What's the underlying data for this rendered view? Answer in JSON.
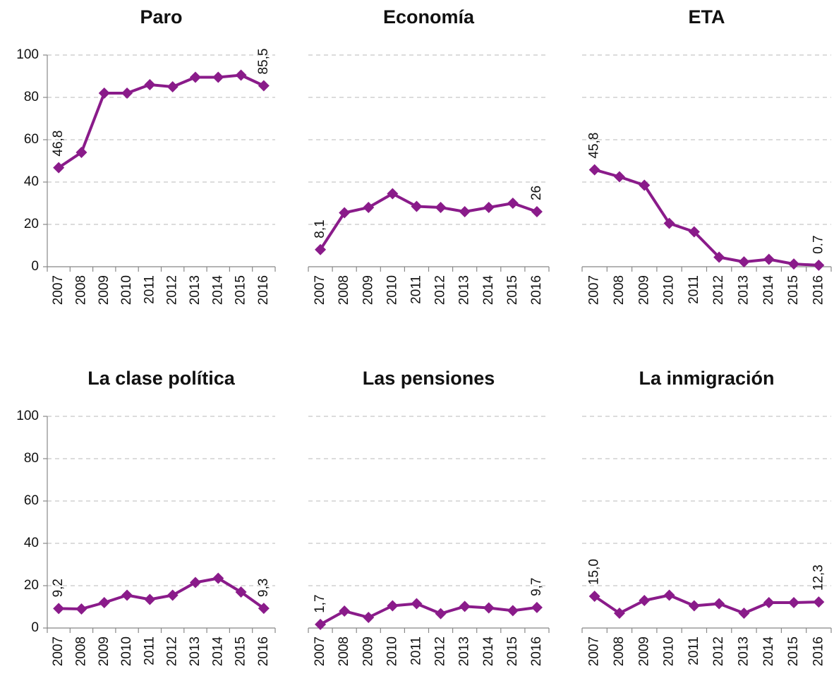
{
  "chart_data": [
    {
      "type": "line",
      "title": "Paro",
      "categories": [
        "2007",
        "2008",
        "2009",
        "2010",
        "2011",
        "2012",
        "2013",
        "2014",
        "2015",
        "2016"
      ],
      "values": [
        46.8,
        54,
        82,
        82,
        86,
        85,
        89.5,
        89.5,
        90.5,
        85.5
      ],
      "value_labels": [
        "46,8",
        null,
        null,
        null,
        null,
        null,
        null,
        null,
        null,
        "85,5"
      ],
      "color": "#8a1b8a",
      "ylim": [
        0,
        100
      ],
      "yticks": [
        0,
        20,
        40,
        60,
        80,
        100
      ],
      "grid": true
    },
    {
      "type": "line",
      "title": "Economía",
      "categories": [
        "2007",
        "2008",
        "2009",
        "2010",
        "2011",
        "2012",
        "2013",
        "2014",
        "2015",
        "2016"
      ],
      "values": [
        8.1,
        25.5,
        28,
        34.5,
        28.5,
        28,
        26,
        28,
        30,
        26
      ],
      "value_labels": [
        "8,1",
        null,
        null,
        null,
        null,
        null,
        null,
        null,
        null,
        "26"
      ],
      "color": "#8a1b8a",
      "ylim": [
        0,
        100
      ],
      "yticks": [
        0,
        20,
        40,
        60,
        80,
        100
      ],
      "grid": true
    },
    {
      "type": "line",
      "title": "ETA",
      "categories": [
        "2007",
        "2008",
        "2009",
        "2010",
        "2011",
        "2012",
        "2013",
        "2014",
        "2015",
        "2016"
      ],
      "values": [
        45.8,
        42.5,
        38.5,
        20.5,
        16.5,
        4.5,
        2.3,
        3.5,
        1.3,
        0.7
      ],
      "value_labels": [
        "45,8",
        null,
        null,
        null,
        null,
        null,
        null,
        null,
        null,
        "0.7"
      ],
      "color": "#8a1b8a",
      "ylim": [
        0,
        100
      ],
      "yticks": [
        0,
        20,
        40,
        60,
        80,
        100
      ],
      "grid": true
    },
    {
      "type": "line",
      "title": "La clase política",
      "categories": [
        "2007",
        "2008",
        "2009",
        "2010",
        "2011",
        "2012",
        "2013",
        "2014",
        "2015",
        "2016"
      ],
      "values": [
        9.2,
        9,
        12,
        15.5,
        13.5,
        15.5,
        21.5,
        23.5,
        17,
        9.3
      ],
      "value_labels": [
        "9,2",
        null,
        null,
        null,
        null,
        null,
        null,
        null,
        null,
        "9,3"
      ],
      "color": "#8a1b8a",
      "ylim": [
        0,
        100
      ],
      "yticks": [
        0,
        20,
        40,
        60,
        80,
        100
      ],
      "grid": true
    },
    {
      "type": "line",
      "title": "Las pensiones",
      "categories": [
        "2007",
        "2008",
        "2009",
        "2010",
        "2011",
        "2012",
        "2013",
        "2014",
        "2015",
        "2016"
      ],
      "values": [
        1.7,
        8,
        5,
        10.5,
        11.5,
        6.8,
        10.2,
        9.5,
        8.2,
        9.7
      ],
      "value_labels": [
        "1,7",
        null,
        null,
        null,
        null,
        null,
        null,
        null,
        null,
        "9,7"
      ],
      "color": "#8a1b8a",
      "ylim": [
        0,
        100
      ],
      "yticks": [
        0,
        20,
        40,
        60,
        80,
        100
      ],
      "grid": true
    },
    {
      "type": "line",
      "title": "La inmigración",
      "categories": [
        "2007",
        "2008",
        "2009",
        "2010",
        "2011",
        "2012",
        "2013",
        "2014",
        "2015",
        "2016"
      ],
      "values": [
        15.0,
        7,
        13,
        15.5,
        10.5,
        11.5,
        7,
        12,
        12,
        12.3
      ],
      "value_labels": [
        "15,0",
        null,
        null,
        null,
        null,
        null,
        null,
        null,
        null,
        "12,3"
      ],
      "color": "#8a1b8a",
      "ylim": [
        0,
        100
      ],
      "yticks": [
        0,
        20,
        40,
        60,
        80,
        100
      ],
      "grid": true
    }
  ]
}
